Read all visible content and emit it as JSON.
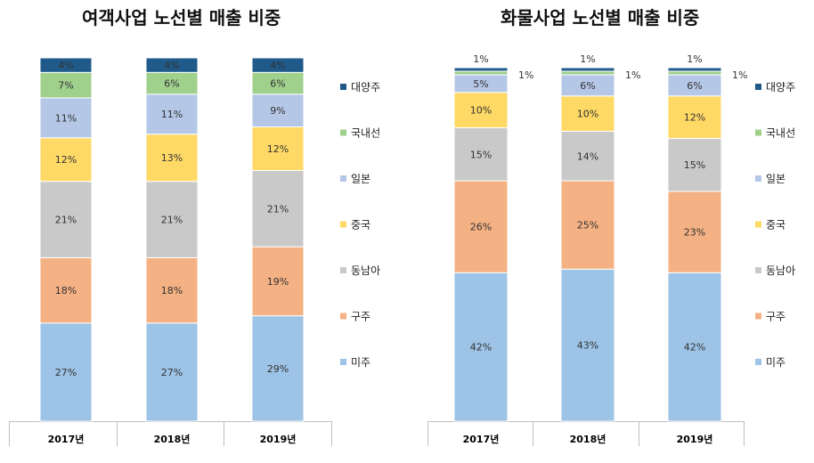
{
  "colors": {
    "대양주": "#1f5a8a",
    "국내선": "#9fd08c",
    "일본": "#b4c7e7",
    "중국": "#ffd966",
    "동남아": "#c9c9c9",
    "구주": "#f4b183",
    "미주": "#9dc3e6"
  },
  "chart_data": [
    {
      "type": "bar",
      "stacked": true,
      "title": "여객사업 노선별 매출 비중",
      "categories": [
        "2017년",
        "2018년",
        "2019년"
      ],
      "ylim": [
        0,
        100
      ],
      "legend_position": "right",
      "series": [
        {
          "name": "미주",
          "values": [
            27,
            27,
            29
          ],
          "labels": [
            "27%",
            "27%",
            "29%"
          ]
        },
        {
          "name": "구주",
          "values": [
            18,
            18,
            19
          ],
          "labels": [
            "18%",
            "18%",
            "19%"
          ]
        },
        {
          "name": "동남아",
          "values": [
            21,
            21,
            21
          ],
          "labels": [
            "21%",
            "21%",
            "21%"
          ]
        },
        {
          "name": "중국",
          "values": [
            12,
            13,
            12
          ],
          "labels": [
            "12%",
            "13%",
            "12%"
          ]
        },
        {
          "name": "일본",
          "values": [
            11,
            11,
            9
          ],
          "labels": [
            "11%",
            "11%",
            "9%"
          ]
        },
        {
          "name": "국내선",
          "values": [
            7,
            6,
            6
          ],
          "labels": [
            "7%",
            "6%",
            "6%"
          ]
        },
        {
          "name": "대양주",
          "values": [
            4,
            4,
            4
          ],
          "labels": [
            "4%",
            "4%",
            "4%"
          ]
        }
      ],
      "legend": [
        "대양주",
        "국내선",
        "일본",
        "중국",
        "동남아",
        "구주",
        "미주"
      ]
    },
    {
      "type": "bar",
      "stacked": true,
      "title": "화물사업 노선별 매출 비중",
      "categories": [
        "2017년",
        "2018년",
        "2019년"
      ],
      "ylim": [
        0,
        100
      ],
      "legend_position": "right",
      "series": [
        {
          "name": "미주",
          "values": [
            42,
            43,
            42
          ],
          "labels": [
            "42%",
            "43%",
            "42%"
          ]
        },
        {
          "name": "구주",
          "values": [
            26,
            25,
            23
          ],
          "labels": [
            "26%",
            "25%",
            "23%"
          ]
        },
        {
          "name": "동남아",
          "values": [
            15,
            14,
            15
          ],
          "labels": [
            "15%",
            "14%",
            "15%"
          ]
        },
        {
          "name": "중국",
          "values": [
            10,
            10,
            12
          ],
          "labels": [
            "10%",
            "10%",
            "12%"
          ]
        },
        {
          "name": "일본",
          "values": [
            5,
            6,
            6
          ],
          "labels": [
            "5%",
            "6%",
            "6%"
          ]
        },
        {
          "name": "국내선",
          "values": [
            1,
            1,
            1
          ],
          "labels": [
            "1%",
            "1%",
            "1%"
          ]
        },
        {
          "name": "대양주",
          "values": [
            1,
            1,
            1
          ],
          "labels": [
            "1%",
            "1%",
            "1%"
          ]
        }
      ],
      "legend": [
        "대양주",
        "국내선",
        "일본",
        "중국",
        "동남아",
        "구주",
        "미주"
      ]
    }
  ]
}
